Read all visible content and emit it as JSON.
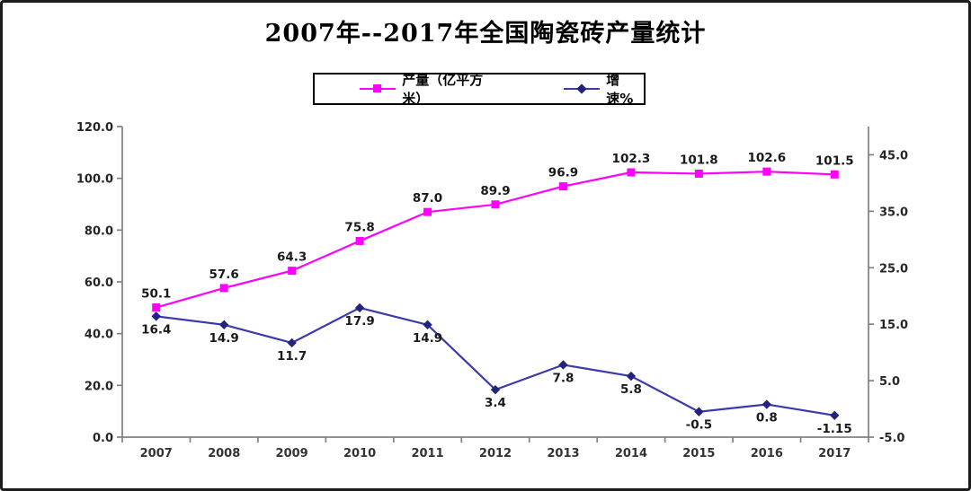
{
  "window": {
    "background": "#ffffff",
    "frame_border_color": "#1c1c1c"
  },
  "chart_data": {
    "type": "line",
    "title": "2007年--2017年全国陶瓷砖产量统计",
    "legend_position": "top",
    "grid": "off",
    "categories": [
      "2007",
      "2008",
      "2009",
      "2010",
      "2011",
      "2012",
      "2013",
      "2014",
      "2015",
      "2016",
      "2017"
    ],
    "series": [
      {
        "name": "产量（亿平方米）",
        "axis": "left",
        "marker": "square",
        "color": "#ff00ff",
        "marker_color": "#ff00ff",
        "values": [
          50.1,
          57.6,
          64.3,
          75.8,
          87.0,
          89.9,
          96.9,
          102.3,
          101.8,
          102.6,
          101.5
        ],
        "labels": [
          "50.1",
          "57.6",
          "64.3",
          "75.8",
          "87.0",
          "89.9",
          "96.9",
          "102.3",
          "101.8",
          "102.6",
          "101.5"
        ]
      },
      {
        "name": "增速%",
        "axis": "right",
        "marker": "diamond",
        "color": "#3a3aa8",
        "marker_color": "#23237e",
        "values": [
          16.4,
          14.9,
          11.7,
          17.9,
          14.9,
          3.4,
          7.8,
          5.8,
          -0.5,
          0.8,
          -1.15
        ],
        "labels": [
          "16.4",
          "14.9",
          "11.7",
          "17.9",
          "14.9",
          "3.4",
          "7.8",
          "5.8",
          "-0.5",
          "0.8",
          "-1.15"
        ]
      }
    ],
    "left_axis": {
      "min": 0,
      "max": 120,
      "step": 20,
      "tick_labels": [
        "0.0",
        "20.0",
        "40.0",
        "60.0",
        "80.0",
        "100.0",
        "120.0"
      ]
    },
    "right_axis": {
      "min": -5,
      "max": 50,
      "step": 10,
      "tick_labels": [
        "-5.0",
        "5.0",
        "15.0",
        "25.0",
        "35.0",
        "45.0"
      ]
    },
    "axis_color": "#808080"
  }
}
